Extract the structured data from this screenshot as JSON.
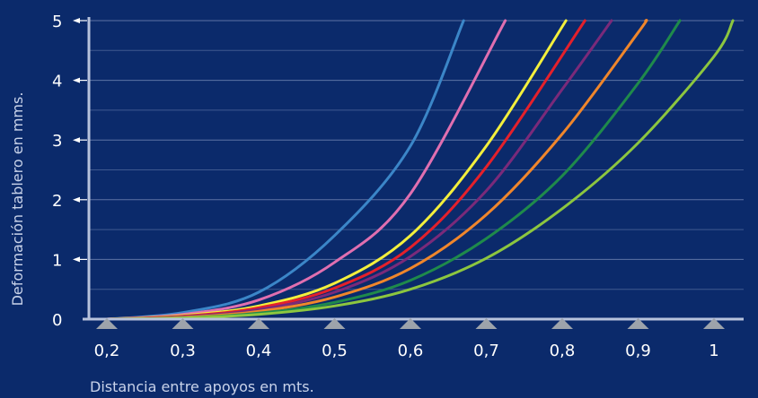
{
  "chart_data": {
    "type": "line",
    "title": "",
    "xlabel": "Distancia entre apoyos en mts.",
    "ylabel": "Deformación tablero en mms.",
    "xlim": [
      0.2,
      1.03
    ],
    "ylim": [
      0,
      5
    ],
    "x_ticks": [
      0.2,
      0.3,
      0.4,
      0.5,
      0.6,
      0.7,
      0.8,
      0.9,
      1.0
    ],
    "x_tick_labels": [
      "0,2",
      "0,3",
      "0,4",
      "0,5",
      "0,6",
      "0,7",
      "0,8",
      "0,9",
      "1"
    ],
    "y_ticks": [
      0,
      1,
      2,
      3,
      4,
      5
    ],
    "y_tick_labels": [
      "0",
      "1",
      "2",
      "3",
      "4",
      "5"
    ],
    "grid": "horizontal",
    "legend": "none",
    "colors": {
      "background": "#0b2a6b",
      "gridline": "#9fb0d6",
      "axis": "#b8c3dc",
      "marker": "#9da3ab"
    },
    "series": [
      {
        "color": "#3b86c8",
        "x": [
          0.2,
          0.3,
          0.4,
          0.5,
          0.6,
          0.67
        ],
        "y": [
          0.0,
          0.11,
          0.45,
          1.4,
          2.9,
          5.0
        ]
      },
      {
        "color": "#e06fb0",
        "x": [
          0.2,
          0.3,
          0.4,
          0.5,
          0.6,
          0.725
        ],
        "y": [
          0.0,
          0.08,
          0.32,
          0.95,
          2.1,
          5.0
        ]
      },
      {
        "color": "#f3ef3c",
        "x": [
          0.2,
          0.3,
          0.4,
          0.5,
          0.6,
          0.7,
          0.805
        ],
        "y": [
          0.0,
          0.06,
          0.22,
          0.6,
          1.4,
          2.9,
          5.0
        ]
      },
      {
        "color": "#e4202b",
        "x": [
          0.2,
          0.3,
          0.4,
          0.5,
          0.6,
          0.7,
          0.83
        ],
        "y": [
          0.0,
          0.05,
          0.19,
          0.52,
          1.2,
          2.55,
          5.0
        ]
      },
      {
        "color": "#7a2a7a",
        "x": [
          0.2,
          0.3,
          0.4,
          0.5,
          0.6,
          0.7,
          0.8,
          0.865
        ],
        "y": [
          0.0,
          0.04,
          0.16,
          0.45,
          1.05,
          2.15,
          3.85,
          5.0
        ]
      },
      {
        "color": "#f0862b",
        "x": [
          0.2,
          0.3,
          0.4,
          0.5,
          0.6,
          0.7,
          0.8,
          0.9,
          0.91
        ],
        "y": [
          0.0,
          0.03,
          0.13,
          0.37,
          0.85,
          1.75,
          3.1,
          4.8,
          5.0
        ]
      },
      {
        "color": "#1f8a4b",
        "x": [
          0.2,
          0.3,
          0.4,
          0.5,
          0.6,
          0.7,
          0.8,
          0.9,
          0.955
        ],
        "y": [
          0.0,
          0.02,
          0.1,
          0.28,
          0.65,
          1.35,
          2.4,
          3.95,
          5.0
        ]
      },
      {
        "color": "#8cc63f",
        "x": [
          0.2,
          0.3,
          0.4,
          0.5,
          0.6,
          0.7,
          0.8,
          0.9,
          1.0,
          1.025
        ],
        "y": [
          0.0,
          0.02,
          0.08,
          0.22,
          0.5,
          1.02,
          1.85,
          2.95,
          4.4,
          5.0
        ]
      }
    ]
  }
}
